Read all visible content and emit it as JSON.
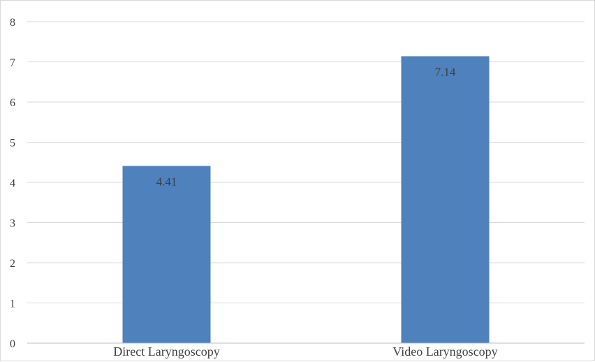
{
  "chart_data": {
    "type": "bar",
    "categories": [
      "Direct Laryngoscopy",
      "Video Laryngoscopy"
    ],
    "values": [
      4.41,
      7.14
    ],
    "data_labels": [
      "4.41",
      "7.14"
    ],
    "title": "",
    "xlabel": "",
    "ylabel": "",
    "ylim": [
      0,
      8
    ],
    "yticks": [
      "0",
      "1",
      "2",
      "3",
      "4",
      "5",
      "6",
      "7",
      "8"
    ],
    "grid": true,
    "legend": "none",
    "bar_color": "#4f81bd"
  }
}
